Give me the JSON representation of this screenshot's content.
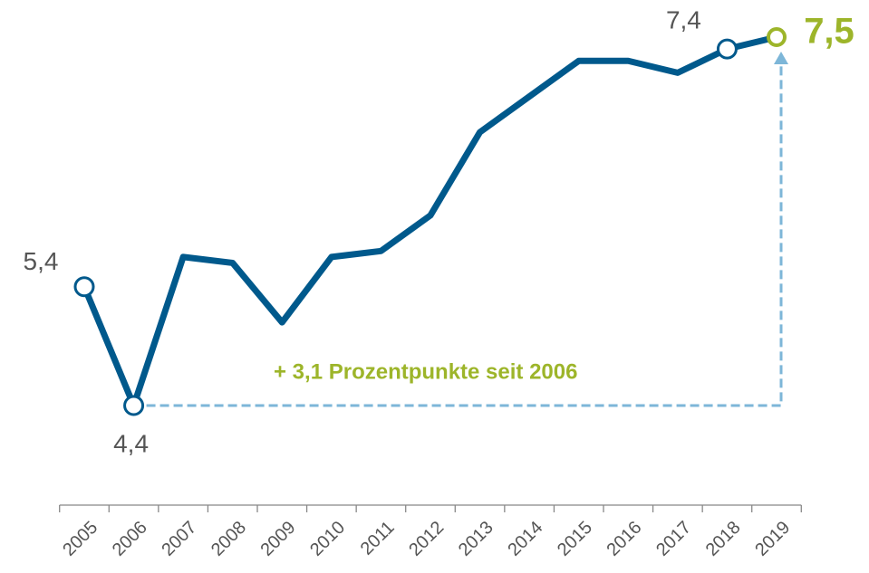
{
  "chart_data": {
    "type": "line",
    "categories": [
      "2005",
      "2006",
      "2007",
      "2008",
      "2009",
      "2010",
      "2011",
      "2012",
      "2013",
      "2014",
      "2015",
      "2016",
      "2017",
      "2018",
      "2019"
    ],
    "series": [
      {
        "color": "#00598c",
        "values": [
          5.4,
          4.4,
          5.65,
          5.6,
          5.1,
          5.65,
          5.7,
          6.0,
          6.7,
          7.0,
          7.3,
          7.3,
          7.2,
          7.4,
          7.5
        ],
        "value_labels": [
          "5,4",
          "4,4",
          null,
          null,
          null,
          null,
          null,
          null,
          null,
          null,
          null,
          null,
          null,
          "7,4",
          "7,5"
        ]
      }
    ],
    "ylim": [
      4.4,
      7.5
    ],
    "annotation": "+ 3,1 Prozentpunkte seit 2006",
    "highlight_color": "#9db52a",
    "arrow_color": "#7db6d8"
  }
}
